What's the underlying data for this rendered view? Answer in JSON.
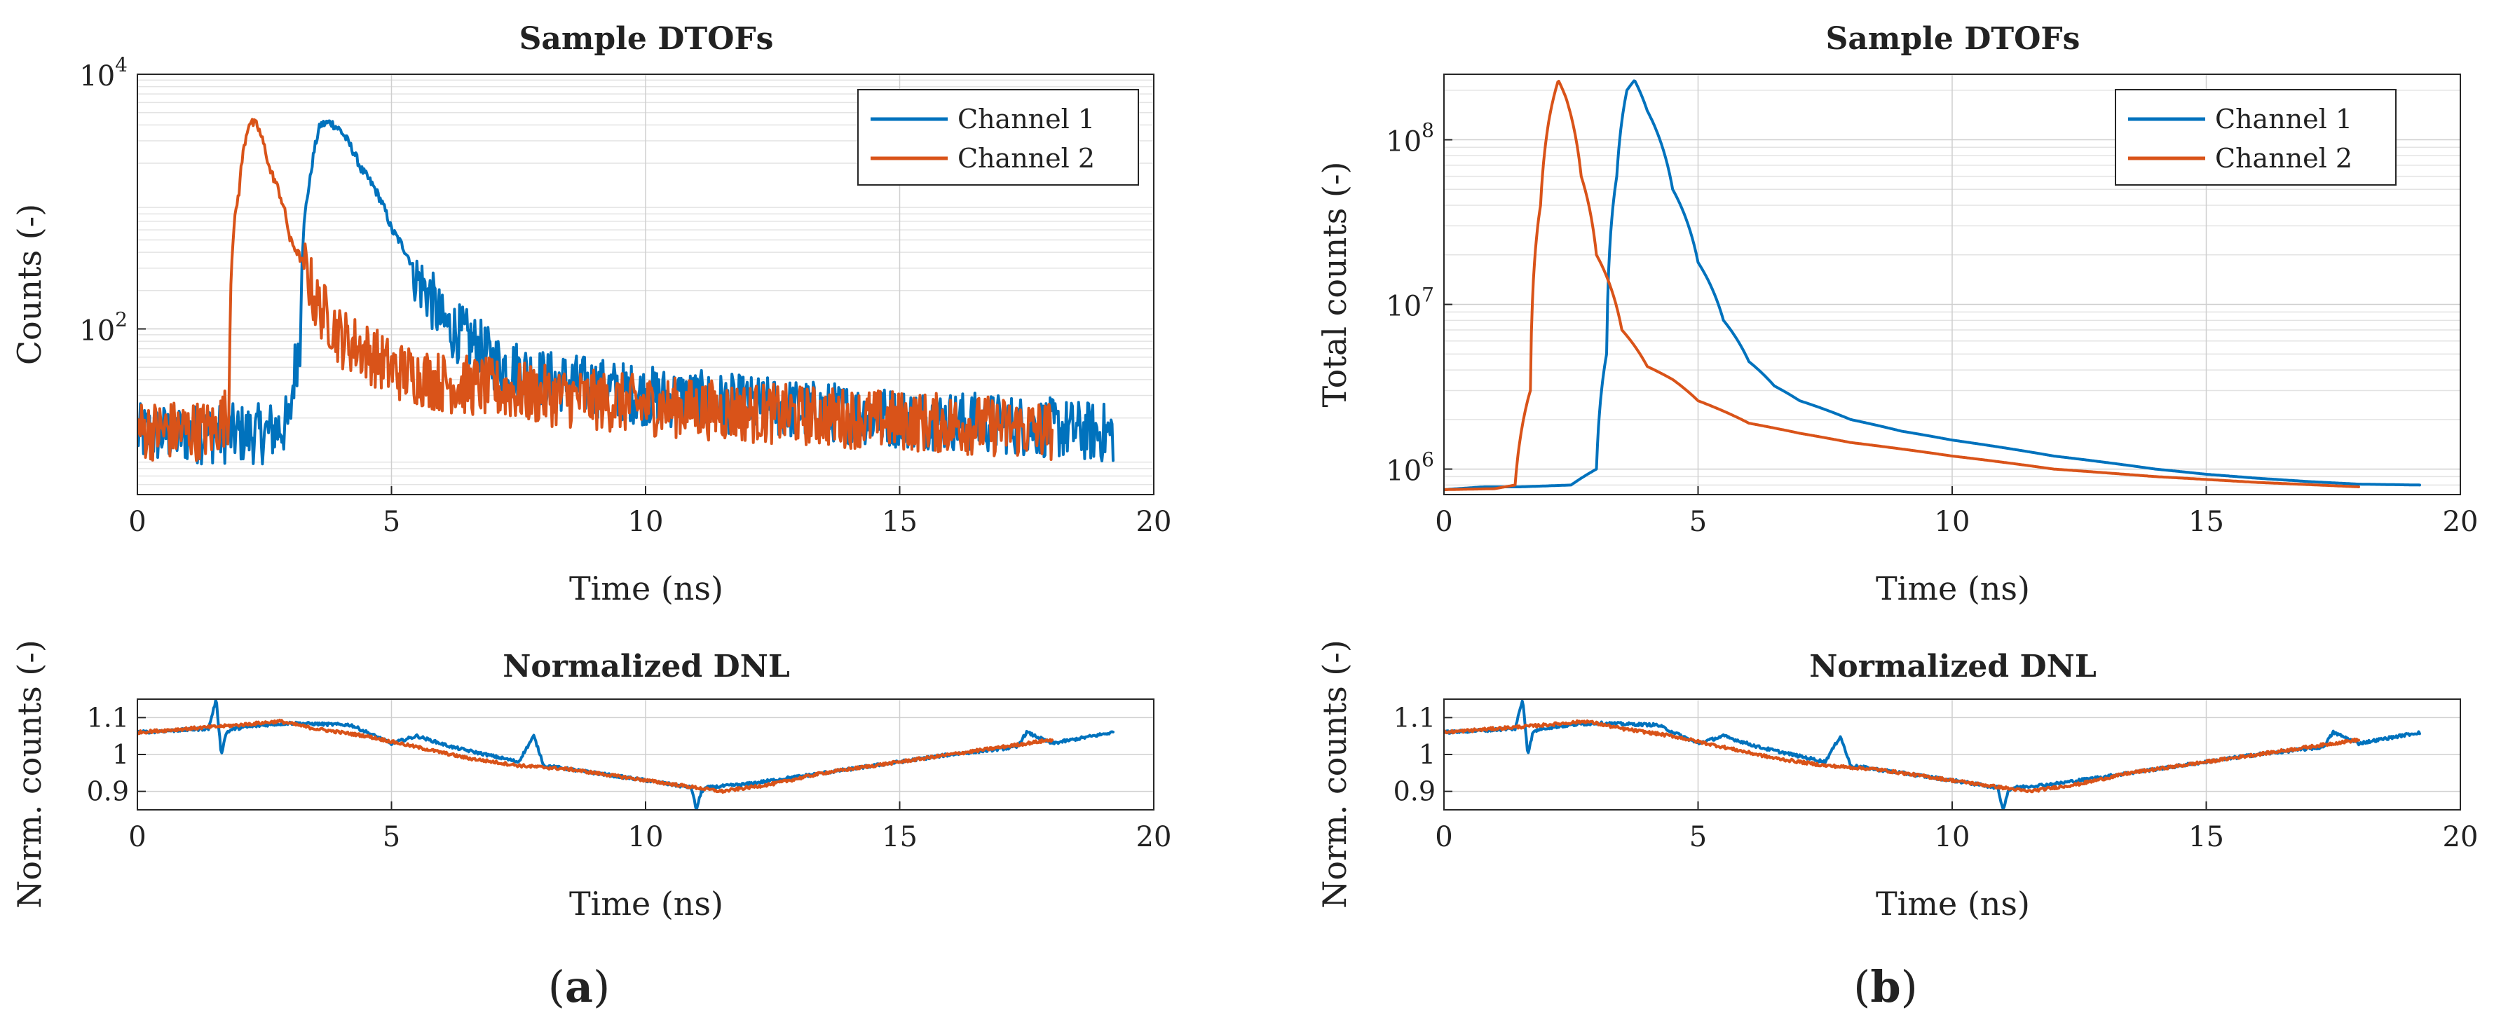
{
  "colors": {
    "channel1": "#0072BD",
    "channel2": "#D95319"
  },
  "panels": [
    {
      "label_prefix": "(",
      "label_letter": "a",
      "label_suffix": ")"
    },
    {
      "label_prefix": "(",
      "label_letter": "b",
      "label_suffix": ")"
    }
  ],
  "chart_data": [
    {
      "id": "a-top",
      "type": "line",
      "title": "Sample DTOFs",
      "xlabel": "Time (ns)",
      "ylabel": "Counts (-)",
      "yscale": "log",
      "xlim": [
        0,
        20
      ],
      "ylim": [
        5,
        10000
      ],
      "xticks": [
        0,
        5,
        10,
        15,
        20
      ],
      "xtick_labels": [
        "0",
        "5",
        "10",
        "15",
        "20"
      ],
      "yticks": [
        100,
        10000
      ],
      "ytick_labels": [
        {
          "base": "10",
          "exp": "2"
        },
        {
          "base": "10",
          "exp": "4"
        }
      ],
      "legend_position": "top-right",
      "noise": 0.55,
      "series": [
        {
          "name": "Channel 1",
          "color": "#0072BD",
          "x": [
            0,
            2.5,
            3.0,
            3.2,
            3.4,
            3.6,
            3.8,
            4.0,
            4.4,
            5.0,
            5.5,
            6.0,
            7.0,
            8.0,
            10.0,
            12.0,
            15.0,
            17.0,
            19.2
          ],
          "y": [
            15,
            15,
            18,
            80,
            1500,
            4000,
            4200,
            3600,
            1800,
            600,
            250,
            110,
            55,
            40,
            30,
            25,
            20,
            18,
            15
          ]
        },
        {
          "name": "Channel 2",
          "color": "#D95319",
          "x": [
            0,
            1.5,
            1.8,
            2.0,
            2.2,
            2.35,
            2.6,
            3.0,
            3.5,
            4.0,
            5.0,
            6.0,
            8.0,
            10.0,
            12.0,
            15.0,
            18.0
          ],
          "y": [
            16,
            16,
            22,
            1200,
            4200,
            4000,
            1800,
            500,
            160,
            85,
            48,
            38,
            30,
            25,
            22,
            19,
            16
          ]
        }
      ]
    },
    {
      "id": "a-bottom",
      "type": "line",
      "title": "Normalized DNL",
      "xlabel": "Time (ns)",
      "ylabel": "Norm. counts (-)",
      "yscale": "linear",
      "xlim": [
        0,
        20
      ],
      "ylim": [
        0.85,
        1.15
      ],
      "xticks": [
        0,
        5,
        10,
        15,
        20
      ],
      "xtick_labels": [
        "0",
        "5",
        "10",
        "15",
        "20"
      ],
      "yticks": [
        0.9,
        1.0,
        1.1
      ],
      "ytick_labels": [
        "0.9",
        "1",
        "1.1"
      ],
      "noise": 0.004,
      "series": [
        {
          "name": "Channel 1",
          "color": "#0072BD",
          "x": [
            0,
            1.4,
            1.55,
            1.65,
            1.75,
            1.9,
            2.5,
            3.0,
            4.2,
            5.0,
            5.5,
            6.2,
            7.5,
            7.8,
            8.0,
            8.5,
            10.0,
            10.9,
            11.0,
            11.1,
            11.2,
            12.0,
            13.0,
            14.0,
            15.0,
            16.0,
            17.3,
            17.5,
            18.0,
            19.2
          ],
          "y": [
            1.06,
            1.07,
            1.15,
            1.0,
            1.06,
            1.07,
            1.08,
            1.085,
            1.08,
            1.03,
            1.05,
            1.02,
            0.98,
            1.05,
            0.97,
            0.96,
            0.93,
            0.91,
            0.85,
            0.9,
            0.91,
            0.92,
            0.94,
            0.96,
            0.98,
            1.0,
            1.02,
            1.06,
            1.03,
            1.06
          ]
        },
        {
          "name": "Channel 2",
          "color": "#D95319",
          "x": [
            0,
            1.0,
            2.0,
            2.8,
            3.5,
            4.5,
            5.5,
            6.5,
            7.5,
            8.5,
            9.5,
            10.5,
            11.5,
            12.5,
            13.5,
            14.5,
            15.5,
            16.5,
            17.5,
            18.0
          ],
          "y": [
            1.06,
            1.07,
            1.08,
            1.09,
            1.07,
            1.05,
            1.02,
            0.99,
            0.97,
            0.96,
            0.94,
            0.92,
            0.9,
            0.92,
            0.95,
            0.97,
            0.99,
            1.01,
            1.03,
            1.04
          ]
        }
      ]
    },
    {
      "id": "b-top",
      "type": "line",
      "title": "Sample DTOFs",
      "xlabel": "Time (ns)",
      "ylabel": "Total counts (-)",
      "yscale": "log",
      "xlim": [
        0,
        20
      ],
      "ylim": [
        700000,
        250000000
      ],
      "xticks": [
        0,
        5,
        10,
        15,
        20
      ],
      "xtick_labels": [
        "0",
        "5",
        "10",
        "15",
        "20"
      ],
      "yticks": [
        1000000,
        10000000,
        100000000
      ],
      "ytick_labels": [
        {
          "base": "10",
          "exp": "6"
        },
        {
          "base": "10",
          "exp": "7"
        },
        {
          "base": "10",
          "exp": "8"
        }
      ],
      "legend_position": "top-right",
      "noise": 0,
      "series": [
        {
          "name": "Channel 1",
          "color": "#0072BD",
          "x": [
            0,
            0.8,
            1.5,
            2.5,
            3.0,
            3.2,
            3.4,
            3.6,
            3.75,
            4.0,
            4.5,
            5.0,
            5.5,
            6.0,
            6.5,
            7.0,
            8.0,
            9.0,
            10.0,
            11.0,
            12.0,
            13.0,
            14.0,
            15.0,
            16.0,
            17.0,
            18.0,
            19.2
          ],
          "y": [
            750000,
            780000,
            780000,
            800000,
            1000000,
            5000000,
            60000000,
            200000000,
            230000000,
            150000000,
            50000000,
            18000000,
            8000000,
            4500000,
            3200000,
            2600000,
            2000000,
            1700000,
            1500000,
            1350000,
            1200000,
            1100000,
            1000000,
            930000,
            880000,
            840000,
            810000,
            800000
          ]
        },
        {
          "name": "Channel 2",
          "color": "#D95319",
          "x": [
            0,
            1.0,
            1.4,
            1.7,
            1.9,
            2.1,
            2.25,
            2.4,
            2.7,
            3.0,
            3.5,
            4.0,
            4.5,
            5.0,
            6.0,
            7.0,
            8.0,
            10.0,
            12.0,
            14.0,
            16.0,
            18.0
          ],
          "y": [
            750000,
            760000,
            800000,
            3000000,
            40000000,
            150000000,
            230000000,
            180000000,
            60000000,
            20000000,
            7000000,
            4200000,
            3500000,
            2600000,
            1900000,
            1650000,
            1450000,
            1200000,
            1000000,
            900000,
            830000,
            780000
          ]
        }
      ]
    },
    {
      "id": "b-bottom",
      "type": "line",
      "title": "Normalized DNL",
      "xlabel": "Time (ns)",
      "ylabel": "Norm. counts (-)",
      "yscale": "linear",
      "xlim": [
        0,
        20
      ],
      "ylim": [
        0.85,
        1.15
      ],
      "xticks": [
        0,
        5,
        10,
        15,
        20
      ],
      "xtick_labels": [
        "0",
        "5",
        "10",
        "15",
        "20"
      ],
      "yticks": [
        0.9,
        1.0,
        1.1
      ],
      "ytick_labels": [
        "0.9",
        "1",
        "1.1"
      ],
      "noise": 0.004,
      "series": [
        {
          "name": "Channel 1",
          "color": "#0072BD",
          "x": [
            0,
            1.4,
            1.55,
            1.65,
            1.75,
            1.9,
            2.5,
            3.0,
            4.2,
            5.0,
            5.5,
            6.2,
            7.5,
            7.8,
            8.0,
            8.5,
            10.0,
            10.9,
            11.0,
            11.1,
            11.2,
            12.0,
            13.0,
            14.0,
            15.0,
            16.0,
            17.3,
            17.5,
            18.0,
            19.2
          ],
          "y": [
            1.06,
            1.07,
            1.15,
            1.0,
            1.06,
            1.07,
            1.08,
            1.085,
            1.08,
            1.03,
            1.05,
            1.02,
            0.98,
            1.05,
            0.97,
            0.96,
            0.93,
            0.91,
            0.85,
            0.9,
            0.91,
            0.92,
            0.94,
            0.96,
            0.98,
            1.0,
            1.02,
            1.06,
            1.03,
            1.06
          ]
        },
        {
          "name": "Channel 2",
          "color": "#D95319",
          "x": [
            0,
            1.0,
            2.0,
            2.8,
            3.5,
            4.5,
            5.5,
            6.5,
            7.5,
            8.5,
            9.5,
            10.5,
            11.5,
            12.5,
            13.5,
            14.5,
            15.5,
            16.5,
            17.5,
            18.0
          ],
          "y": [
            1.06,
            1.07,
            1.08,
            1.09,
            1.07,
            1.05,
            1.02,
            0.99,
            0.97,
            0.96,
            0.94,
            0.92,
            0.9,
            0.92,
            0.95,
            0.97,
            0.99,
            1.01,
            1.03,
            1.04
          ]
        }
      ]
    }
  ]
}
